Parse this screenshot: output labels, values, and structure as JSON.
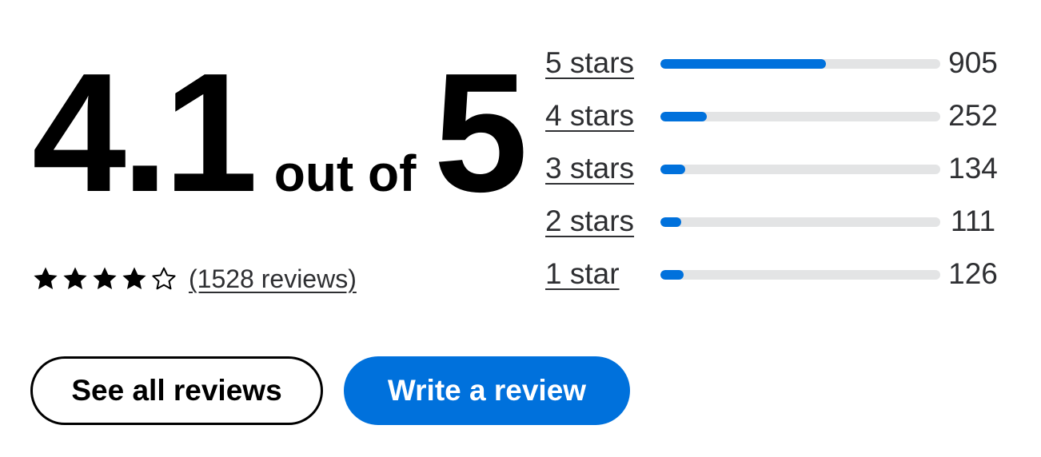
{
  "summary": {
    "score": "4.1",
    "out_of_text": "out of",
    "max": "5",
    "stars": [
      "star-full-icon",
      "star-full-icon",
      "star-full-icon",
      "star-full-icon",
      "star-empty-icon"
    ],
    "reviews_link": "(1528 reviews)"
  },
  "buttons": {
    "see_all": "See all reviews",
    "write": "Write a review"
  },
  "breakdown": [
    {
      "label": "5 stars",
      "count": "905",
      "fraction": 0.59
    },
    {
      "label": "4 stars",
      "count": "252",
      "fraction": 0.165
    },
    {
      "label": "3 stars",
      "count": "134",
      "fraction": 0.088
    },
    {
      "label": "2 stars",
      "count": "111",
      "fraction": 0.073
    },
    {
      "label": "1 star",
      "count": "126",
      "fraction": 0.082
    }
  ],
  "colors": {
    "accent": "#0071dc",
    "track": "#e3e4e5",
    "text": "#2e2f32"
  }
}
